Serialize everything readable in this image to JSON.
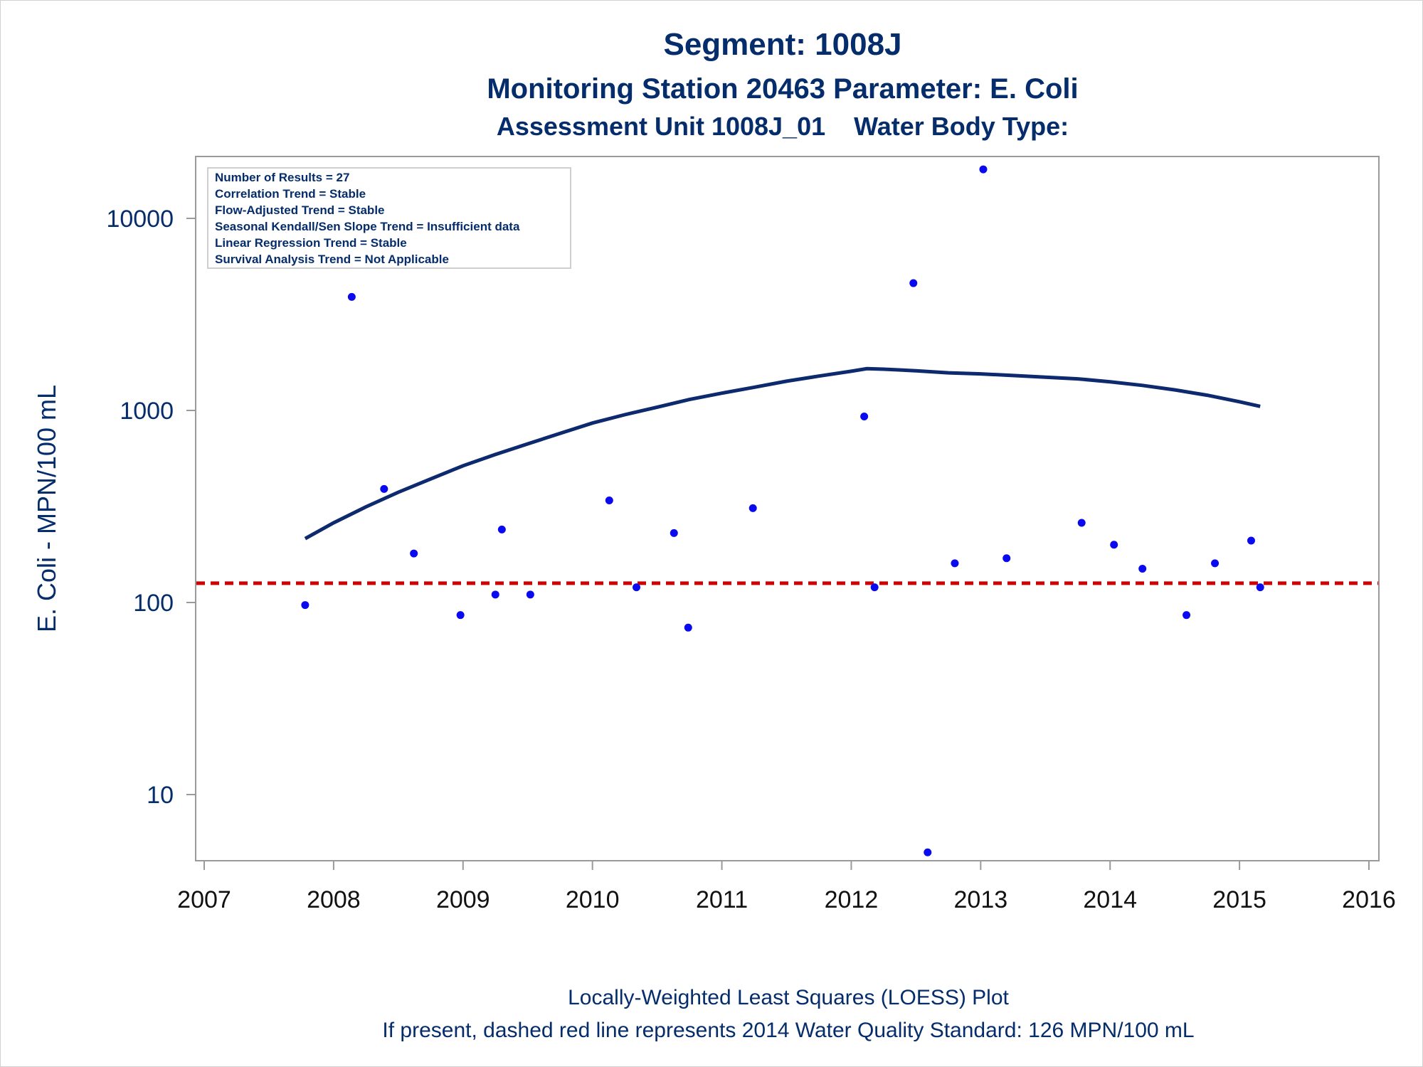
{
  "chart_data": {
    "type": "scatter",
    "title": "Segment: 1008J",
    "subtitle1": "Monitoring Station 20463 Parameter: E. Coli",
    "subtitle2": "Assessment Unit 1008J_01    Water Body Type:",
    "ylabel": "E. Coli - MPN/100 mL",
    "footnote1": "Locally-Weighted Least Squares (LOESS) Plot",
    "footnote2": "If present, dashed red line represents 2014 Water Quality Standard: 126 MPN/100 mL",
    "y_scale": "log",
    "xlim": [
      2007,
      2016
    ],
    "ylim": [
      5,
      20000
    ],
    "x_ticks": [
      2007,
      2008,
      2009,
      2010,
      2011,
      2012,
      2013,
      2014,
      2015,
      2016
    ],
    "y_ticks": [
      10,
      100,
      1000,
      10000
    ],
    "info_box": [
      "Number of Results = 27",
      "Correlation Trend = Stable",
      "Flow-Adjusted Trend = Stable",
      "Seasonal Kendall/Sen Slope Trend = Insufficient data",
      "Linear Regression Trend = Stable",
      "Survival Analysis Trend = Not Applicable"
    ],
    "points": [
      {
        "x": 2007.78,
        "y": 97
      },
      {
        "x": 2008.14,
        "y": 3900
      },
      {
        "x": 2008.39,
        "y": 390
      },
      {
        "x": 2008.62,
        "y": 180
      },
      {
        "x": 2008.98,
        "y": 86
      },
      {
        "x": 2009.25,
        "y": 110
      },
      {
        "x": 2009.3,
        "y": 240
      },
      {
        "x": 2009.52,
        "y": 110
      },
      {
        "x": 2010.13,
        "y": 340
      },
      {
        "x": 2010.34,
        "y": 120
      },
      {
        "x": 2010.63,
        "y": 230
      },
      {
        "x": 2010.74,
        "y": 74
      },
      {
        "x": 2011.24,
        "y": 310
      },
      {
        "x": 2012.1,
        "y": 930
      },
      {
        "x": 2012.18,
        "y": 120
      },
      {
        "x": 2012.48,
        "y": 4600
      },
      {
        "x": 2012.59,
        "y": 5
      },
      {
        "x": 2012.8,
        "y": 160
      },
      {
        "x": 2013.02,
        "y": 18000
      },
      {
        "x": 2013.2,
        "y": 170
      },
      {
        "x": 2013.78,
        "y": 260
      },
      {
        "x": 2014.03,
        "y": 200
      },
      {
        "x": 2014.25,
        "y": 150
      },
      {
        "x": 2014.59,
        "y": 86
      },
      {
        "x": 2014.81,
        "y": 160
      },
      {
        "x": 2015.09,
        "y": 210
      },
      {
        "x": 2015.16,
        "y": 120
      }
    ],
    "loess": [
      {
        "x": 2007.78,
        "y": 215
      },
      {
        "x": 2008.0,
        "y": 260
      },
      {
        "x": 2008.25,
        "y": 315
      },
      {
        "x": 2008.5,
        "y": 375
      },
      {
        "x": 2008.75,
        "y": 440
      },
      {
        "x": 2009.0,
        "y": 515
      },
      {
        "x": 2009.25,
        "y": 590
      },
      {
        "x": 2009.5,
        "y": 670
      },
      {
        "x": 2009.75,
        "y": 760
      },
      {
        "x": 2010.0,
        "y": 860
      },
      {
        "x": 2010.25,
        "y": 950
      },
      {
        "x": 2010.5,
        "y": 1040
      },
      {
        "x": 2010.75,
        "y": 1140
      },
      {
        "x": 2011.0,
        "y": 1230
      },
      {
        "x": 2011.25,
        "y": 1320
      },
      {
        "x": 2011.5,
        "y": 1420
      },
      {
        "x": 2011.75,
        "y": 1510
      },
      {
        "x": 2012.0,
        "y": 1600
      },
      {
        "x": 2012.12,
        "y": 1650
      },
      {
        "x": 2012.25,
        "y": 1640
      },
      {
        "x": 2012.5,
        "y": 1610
      },
      {
        "x": 2012.75,
        "y": 1570
      },
      {
        "x": 2013.0,
        "y": 1550
      },
      {
        "x": 2013.25,
        "y": 1520
      },
      {
        "x": 2013.5,
        "y": 1490
      },
      {
        "x": 2013.75,
        "y": 1460
      },
      {
        "x": 2014.0,
        "y": 1410
      },
      {
        "x": 2014.25,
        "y": 1350
      },
      {
        "x": 2014.5,
        "y": 1280
      },
      {
        "x": 2014.75,
        "y": 1200
      },
      {
        "x": 2015.0,
        "y": 1110
      },
      {
        "x": 2015.16,
        "y": 1050
      }
    ],
    "standard_line": {
      "y": 126,
      "color": "#cc0000"
    },
    "colors": {
      "points": "#0a0af0",
      "loess": "#0d2a6e",
      "text": "#052c6b"
    }
  }
}
